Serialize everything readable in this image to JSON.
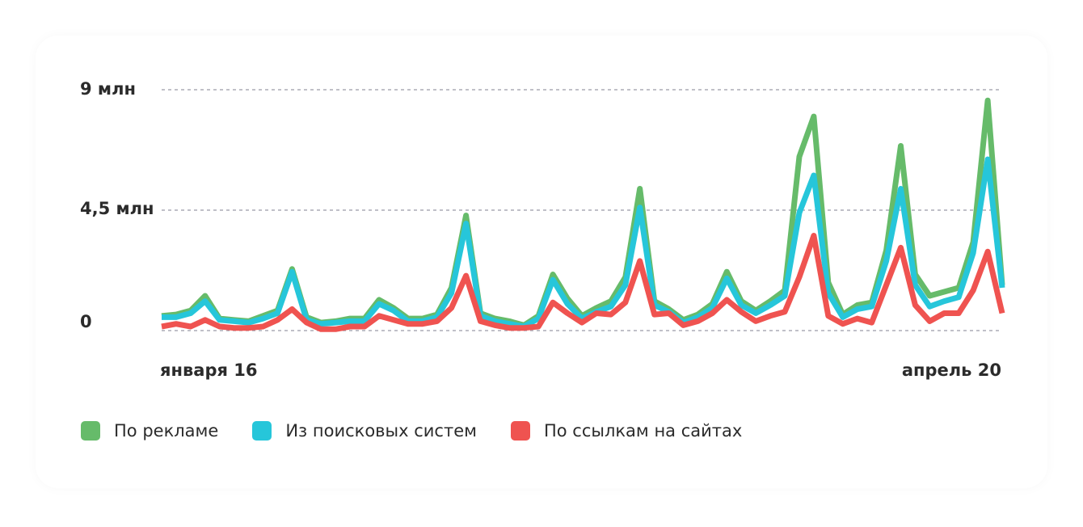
{
  "chart_data": {
    "type": "line",
    "x_tick_labels": [
      "января 16",
      "апрель 20"
    ],
    "y_tick_labels": [
      "9 млн",
      "4,5 млн",
      "0"
    ],
    "ylim": [
      0,
      9
    ],
    "y_unit": "млн",
    "grid": "horizontal dashed",
    "legend_position": "bottom-left",
    "series": [
      {
        "name": "По рекламе",
        "color": "#66bb6a",
        "values": [
          0.55,
          0.6,
          0.75,
          1.3,
          0.45,
          0.4,
          0.35,
          0.55,
          0.75,
          2.3,
          0.5,
          0.3,
          0.35,
          0.45,
          0.45,
          1.15,
          0.85,
          0.45,
          0.45,
          0.6,
          1.6,
          4.3,
          0.65,
          0.45,
          0.35,
          0.2,
          0.55,
          2.1,
          1.2,
          0.55,
          0.85,
          1.1,
          2.0,
          5.3,
          1.1,
          0.8,
          0.4,
          0.6,
          1.0,
          2.2,
          1.1,
          0.75,
          1.1,
          1.5,
          6.5,
          8.0,
          1.8,
          0.6,
          0.95,
          1.05,
          3.0,
          6.9,
          2.1,
          1.3,
          1.45,
          1.6,
          3.3,
          8.6,
          1.7
        ]
      },
      {
        "name": "Из поисковых систем",
        "color": "#26c6da",
        "values": [
          0.5,
          0.5,
          0.65,
          1.1,
          0.4,
          0.35,
          0.3,
          0.45,
          0.65,
          2.2,
          0.4,
          0.25,
          0.3,
          0.35,
          0.35,
          1.0,
          0.75,
          0.35,
          0.35,
          0.5,
          1.4,
          4.0,
          0.55,
          0.35,
          0.25,
          0.15,
          0.45,
          1.9,
          1.0,
          0.45,
          0.7,
          0.9,
          1.7,
          4.6,
          0.95,
          0.7,
          0.3,
          0.5,
          0.85,
          1.95,
          0.95,
          0.65,
          0.95,
          1.3,
          4.4,
          5.8,
          1.4,
          0.5,
          0.8,
          0.9,
          2.6,
          5.3,
          1.7,
          0.9,
          1.1,
          1.25,
          2.9,
          6.4,
          1.6
        ]
      },
      {
        "name": "По ссылкам на сайтах",
        "color": "#ef5350",
        "values": [
          0.15,
          0.25,
          0.15,
          0.4,
          0.15,
          0.1,
          0.1,
          0.15,
          0.4,
          0.8,
          0.3,
          0.05,
          0.05,
          0.15,
          0.15,
          0.55,
          0.4,
          0.25,
          0.25,
          0.35,
          0.85,
          2.05,
          0.35,
          0.2,
          0.1,
          0.1,
          0.15,
          1.05,
          0.65,
          0.3,
          0.65,
          0.6,
          1.05,
          2.6,
          0.6,
          0.65,
          0.2,
          0.35,
          0.65,
          1.15,
          0.7,
          0.35,
          0.55,
          0.7,
          2.0,
          3.55,
          0.55,
          0.25,
          0.45,
          0.3,
          1.7,
          3.1,
          0.95,
          0.35,
          0.65,
          0.65,
          1.5,
          2.95,
          0.65
        ]
      }
    ]
  }
}
